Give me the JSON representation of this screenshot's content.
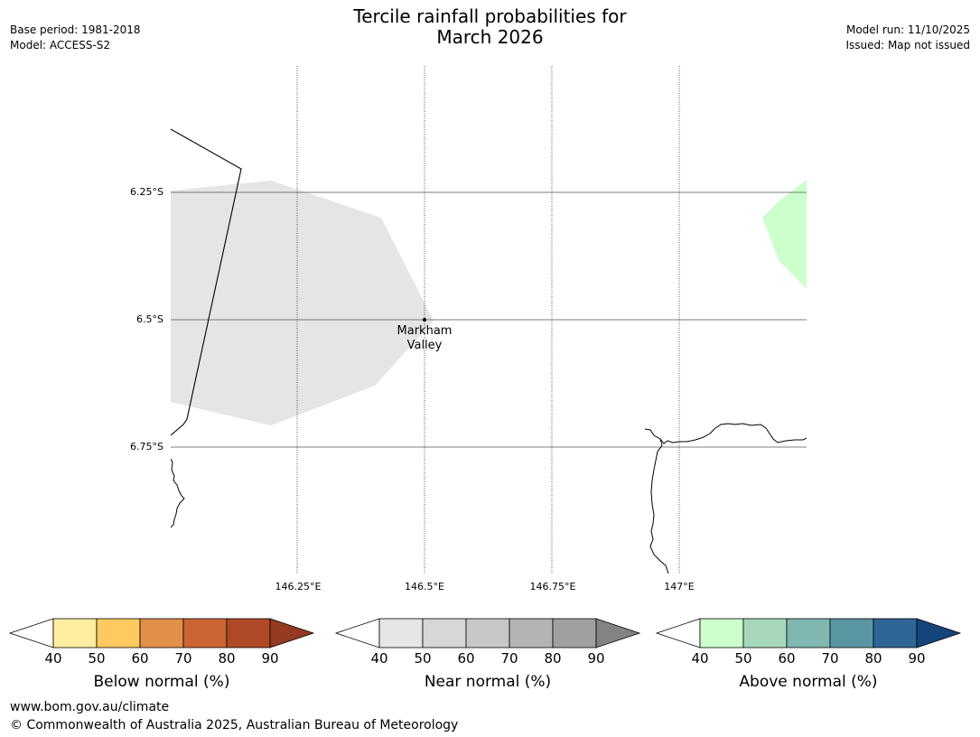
{
  "header": {
    "title_line1": "Tercile rainfall probabilities for",
    "title_line2": "March 2026",
    "base_period": "Base period: 1981-2018",
    "model": "Model: ACCESS-S2",
    "model_run": "Model run: 11/10/2025",
    "issued": "Issued: Map not issued"
  },
  "map": {
    "lat_labels": [
      "6.25°S",
      "6.5°S",
      "6.75°S"
    ],
    "lon_labels": [
      "146.25°E",
      "146.5°E",
      "146.75°E",
      "147°E"
    ],
    "place": {
      "name_line1": "Markham",
      "name_line2": "Valley"
    },
    "colors": {
      "near_normal_fill": "#e5e5e5",
      "above_normal_fill": "#ccffcc",
      "gridline": "#555555"
    }
  },
  "colorbars": [
    {
      "title": "Below normal (%)",
      "ticks": [
        "40",
        "50",
        "60",
        "70",
        "80",
        "90"
      ],
      "colors": [
        "#ffeda0",
        "#fec95e",
        "#e0904a",
        "#cc6433",
        "#b04a26",
        "#953a22"
      ]
    },
    {
      "title": "Near normal (%)",
      "ticks": [
        "40",
        "50",
        "60",
        "70",
        "80",
        "90"
      ],
      "colors": [
        "#e6e6e6",
        "#d7d7d7",
        "#c7c7c7",
        "#b4b4b4",
        "#a0a0a0",
        "#838383"
      ]
    },
    {
      "title": "Above normal (%)",
      "ticks": [
        "40",
        "50",
        "60",
        "70",
        "80",
        "90"
      ],
      "colors": [
        "#ccffcc",
        "#a6d9bb",
        "#80b7b0",
        "#5996a2",
        "#2f6596",
        "#15457b"
      ]
    }
  ],
  "footer": {
    "url": "www.bom.gov.au/climate",
    "copyright": "© Commonwealth of Australia 2025, Australian Bureau of Meteorology"
  }
}
